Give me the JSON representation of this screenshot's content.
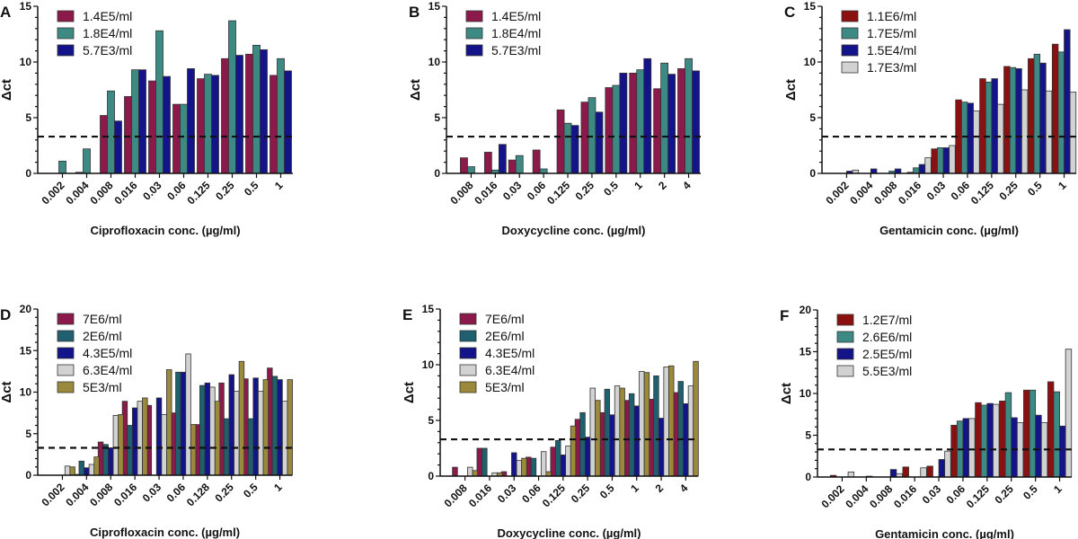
{
  "chart_data": [
    {
      "panel": "A",
      "type": "bar",
      "ylabel": "Δct",
      "xlabel": "Ciprofloxacin conc. (µg/ml)",
      "ylim": [
        0,
        15
      ],
      "yticks": [
        0,
        5,
        10,
        15
      ],
      "threshold": 3.3,
      "legend": "top-left",
      "categories": [
        "0.002",
        "0.004",
        "0.008",
        "0.016",
        "0.03",
        "0.06",
        "0.125",
        "0.25",
        "0.5",
        "1"
      ],
      "series": [
        {
          "name": "1.4E5/ml",
          "color": "#8b1a4a",
          "values": [
            0,
            0.1,
            5.2,
            6.9,
            8.3,
            6.2,
            8.5,
            10.3,
            10.7,
            8.8
          ]
        },
        {
          "name": "1.8E4/ml",
          "color": "#3d8a85",
          "values": [
            1.1,
            2.2,
            7.4,
            9.3,
            12.8,
            6.2,
            8.9,
            13.7,
            11.5,
            10.3
          ]
        },
        {
          "name": "5.7E3/ml",
          "color": "#14148a",
          "values": [
            0,
            0,
            4.7,
            9.3,
            8.7,
            9.4,
            8.8,
            10.6,
            11.1,
            9.2
          ]
        }
      ]
    },
    {
      "panel": "B",
      "type": "bar",
      "ylabel": "Δct",
      "xlabel": "Doxycycline conc. (µg/ml)",
      "ylim": [
        0,
        15
      ],
      "yticks": [
        0,
        5,
        10,
        15
      ],
      "threshold": 3.3,
      "legend": "top-left",
      "categories": [
        "0.008",
        "0.016",
        "0.03",
        "0.06",
        "0.125",
        "0.25",
        "0.5",
        "1",
        "2",
        "4"
      ],
      "series": [
        {
          "name": "1.4E5/ml",
          "color": "#8b1a4a",
          "values": [
            1.4,
            1.9,
            1.2,
            2.1,
            5.7,
            6.4,
            7.7,
            9.0,
            7.6,
            9.4
          ]
        },
        {
          "name": "1.8E4/ml",
          "color": "#3d8a85",
          "values": [
            0.6,
            0.3,
            1.6,
            0.4,
            4.5,
            6.8,
            7.9,
            9.3,
            9.9,
            10.3
          ]
        },
        {
          "name": "5.7E3/ml",
          "color": "#14148a",
          "values": [
            0,
            2.6,
            0,
            0,
            4.3,
            5.5,
            9.0,
            10.3,
            8.9,
            9.2
          ]
        }
      ]
    },
    {
      "panel": "C",
      "type": "bar",
      "ylabel": "Δct",
      "xlabel": "Gentamicin conc. (µg/ml)",
      "ylim": [
        0,
        15
      ],
      "yticks": [
        0,
        5,
        10,
        15
      ],
      "threshold": 3.3,
      "legend": "top-left",
      "categories": [
        "0.002",
        "0.004",
        "0.008",
        "0.016",
        "0.03",
        "0.06",
        "0.125",
        "0.25",
        "0.5",
        "1"
      ],
      "series": [
        {
          "name": "1.1E6/ml",
          "color": "#8b1010",
          "values": [
            0,
            0,
            0,
            0.1,
            2.2,
            6.6,
            8.5,
            9.6,
            10.3,
            11.6
          ]
        },
        {
          "name": "1.7E5/ml",
          "color": "#3d8a85",
          "values": [
            0,
            0,
            0.2,
            0.5,
            2.3,
            6.4,
            8.2,
            9.5,
            10.7,
            10.9
          ]
        },
        {
          "name": "1.5E4/ml",
          "color": "#14148a",
          "values": [
            0.2,
            0.4,
            0.4,
            0.8,
            2.3,
            6.3,
            8.5,
            9.4,
            9.9,
            12.9
          ]
        },
        {
          "name": "1.7E3/ml",
          "color": "#d2d2d2",
          "values": [
            0.3,
            0,
            0,
            1.4,
            2.5,
            5.6,
            6.2,
            7.5,
            7.4,
            7.3
          ]
        }
      ]
    },
    {
      "panel": "D",
      "type": "bar",
      "ylabel": "Δct",
      "xlabel": "Ciprofloxacin conc. (µg/ml)",
      "ylim": [
        0,
        20
      ],
      "yticks": [
        0,
        5,
        10,
        15,
        20
      ],
      "threshold": 3.3,
      "legend": "top-left",
      "categories": [
        "0.002",
        "0.004",
        "0.008",
        "0.016",
        "0.03",
        "0.06",
        "0.128",
        "0.25",
        "0.5",
        "1"
      ],
      "series": [
        {
          "name": "7E6/ml",
          "color": "#8b1a4a",
          "values": [
            0,
            0.1,
            4.0,
            8.9,
            8.4,
            7.5,
            6.1,
            11.1,
            11.6,
            12.9
          ]
        },
        {
          "name": "2E6/ml",
          "color": "#1f6070",
          "values": [
            0,
            1.7,
            3.7,
            6.0,
            0,
            12.4,
            10.8,
            6.8,
            6.8,
            11.9
          ]
        },
        {
          "name": "4.3E5/ml",
          "color": "#14148a",
          "values": [
            0,
            0.9,
            3.3,
            8.1,
            9.3,
            12.4,
            11.1,
            12.1,
            11.7,
            11.5
          ]
        },
        {
          "name": "6.3E4/ml",
          "color": "#d2d2d2",
          "values": [
            1.1,
            1.3,
            7.2,
            8.9,
            7.3,
            14.6,
            10.6,
            10.1,
            10.1,
            8.9
          ]
        },
        {
          "name": "5E3/ml",
          "color": "#9c8a3c",
          "values": [
            1.0,
            2.2,
            7.3,
            9.3,
            12.7,
            6.1,
            8.9,
            13.7,
            11.5,
            11.5
          ]
        }
      ]
    },
    {
      "panel": "E",
      "type": "bar",
      "ylabel": "Δct",
      "xlabel": "Doxycycline conc. (µg/ml)",
      "ylim": [
        0,
        15
      ],
      "yticks": [
        0,
        5,
        10,
        15
      ],
      "threshold": 3.3,
      "legend": "top-left",
      "categories": [
        "0.008",
        "0.016",
        "0.03",
        "0.06",
        "0.125",
        "0.25",
        "0.5",
        "1",
        "2",
        "4"
      ],
      "series": [
        {
          "name": "7E6/ml",
          "color": "#8b1a4a",
          "values": [
            0.8,
            2.5,
            0.4,
            1.7,
            2.6,
            5.1,
            5.7,
            6.8,
            6.9,
            7.5
          ]
        },
        {
          "name": "2E6/ml",
          "color": "#1f6070",
          "values": [
            0,
            2.5,
            0,
            1.6,
            3.2,
            5.7,
            7.8,
            7.4,
            9.0,
            8.5
          ]
        },
        {
          "name": "4.3E5/ml",
          "color": "#14148a",
          "values": [
            0,
            0,
            2.1,
            0,
            1.9,
            3.5,
            5.5,
            6.3,
            5.2,
            6.5
          ]
        },
        {
          "name": "6.3E4/ml",
          "color": "#d2d2d2",
          "values": [
            0.8,
            0.3,
            1.4,
            2.2,
            2.7,
            7.9,
            8.1,
            9.4,
            9.8,
            8.1
          ]
        },
        {
          "name": "5E3/ml",
          "color": "#9c8a3c",
          "values": [
            0.5,
            0.3,
            1.6,
            0.4,
            4.5,
            6.8,
            7.9,
            9.3,
            9.9,
            10.3
          ]
        }
      ]
    },
    {
      "panel": "F",
      "type": "bar",
      "ylabel": "Δct",
      "xlabel": "Gentamicin conc. (µg/ml)",
      "ylim": [
        0,
        20
      ],
      "yticks": [
        0,
        5,
        10,
        15,
        20
      ],
      "threshold": 3.3,
      "legend": "top-left",
      "categories": [
        "0.002",
        "0.004",
        "0.008",
        "0.016",
        "0.03",
        "0.06",
        "0.125",
        "0.25",
        "0.5",
        "1"
      ],
      "series": [
        {
          "name": "1.2E7/ml",
          "color": "#8b1010",
          "values": [
            0.2,
            0,
            0,
            1.2,
            1.3,
            6.2,
            8.9,
            9.1,
            10.4,
            11.4
          ]
        },
        {
          "name": "2.6E6/ml",
          "color": "#3d8a85",
          "values": [
            0,
            0,
            0,
            0,
            0,
            6.7,
            8.6,
            10.1,
            10.4,
            10.2
          ]
        },
        {
          "name": "2.5E5/ml",
          "color": "#14148a",
          "values": [
            0,
            0.1,
            0.9,
            0,
            2.1,
            7.0,
            8.8,
            7.1,
            7.4,
            6.1
          ]
        },
        {
          "name": "5.5E3/ml",
          "color": "#d2d2d2",
          "values": [
            0.6,
            0,
            0.4,
            1.1,
            3.1,
            7.0,
            8.7,
            6.5,
            6.5,
            15.3
          ]
        }
      ]
    }
  ]
}
